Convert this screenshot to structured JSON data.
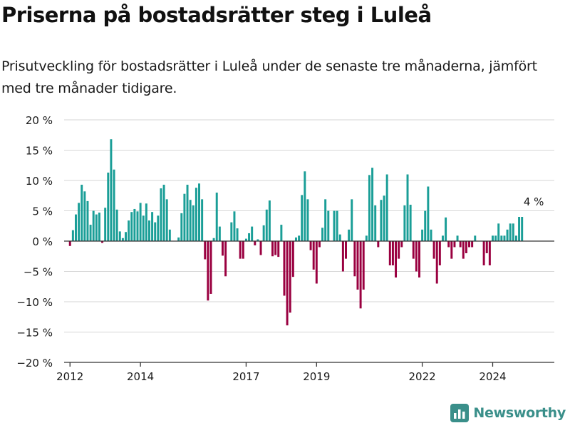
{
  "title": "Priserna på bostadsrätter steg i Luleå",
  "subtitle": "Prisutveckling för bostadsrätter i Luleå under de senaste tre månaderna, jämfört med tre månader tidigare.",
  "brand": {
    "name": "Newsworthy",
    "icon": "bar-chart-logo-icon",
    "color": "#3a8f8a"
  },
  "colors": {
    "positive": "#1a9e97",
    "negative": "#9a0040",
    "grid": "#d6d6d6",
    "axis": "#333333"
  },
  "chart_data": {
    "type": "bar",
    "xlabel": "",
    "ylabel": "",
    "ylim": [
      -20,
      20
    ],
    "yticks": [
      -20,
      -15,
      -10,
      -5,
      0,
      5,
      10,
      15,
      20
    ],
    "ytick_labels": [
      "−20 %",
      "−15 %",
      "−10 %",
      "−5 %",
      "0 %",
      "5 %",
      "10 %",
      "15 %",
      "20 %"
    ],
    "xrange": [
      "2011-11",
      "2025-10"
    ],
    "xticks": [
      {
        "date": "2012-01",
        "label": "2012"
      },
      {
        "date": "2014-01",
        "label": "2014"
      },
      {
        "date": "2017-01",
        "label": "2017"
      },
      {
        "date": "2019-01",
        "label": "2019"
      },
      {
        "date": "2022-01",
        "label": "2022"
      },
      {
        "date": "2024-01",
        "label": "2024"
      }
    ],
    "annotation": {
      "text": "4 %",
      "date": "2025-03",
      "value": 4
    },
    "series": [
      {
        "start": "2012-01",
        "values": [
          -0.8,
          1.8,
          4.4,
          6.3,
          9.3,
          8.2,
          6.6,
          2.7,
          5.0,
          4.4,
          4.7,
          -0.3,
          5.5,
          11.3,
          16.8,
          11.8,
          5.2,
          1.6,
          0.5,
          1.5,
          3.4,
          4.8,
          5.3,
          4.9,
          6.3,
          4.2,
          6.2,
          3.4,
          4.8,
          3.1,
          4.2,
          8.7,
          9.3,
          6.9,
          1.9,
          null,
          null,
          0.6,
          4.6,
          7.8,
          9.3,
          6.8,
          5.9,
          8.8,
          9.5,
          6.9,
          -3.0,
          -9.8,
          -8.7,
          0.5,
          8.0,
          2.4,
          -2.4,
          -5.8,
          null,
          3.1,
          4.9,
          2.1,
          -2.9,
          -2.9,
          0.4,
          1.3,
          2.4,
          -0.7,
          0.3,
          -2.3,
          2.6,
          5.2,
          6.7,
          -2.5,
          -2.3,
          -2.6,
          2.7,
          -9.0,
          -13.9,
          -11.8,
          -5.9,
          0.6,
          0.9,
          7.6,
          11.5,
          6.9,
          -1.5,
          -4.7,
          -7.0,
          -1.0,
          2.2,
          6.9,
          5.0,
          null,
          5.0,
          5.0,
          1.1,
          -5.0,
          -2.9,
          1.9,
          6.9,
          -5.8,
          -8.0,
          -11.1,
          -8.0,
          0.9,
          10.9,
          12.1,
          5.9,
          -1.0,
          6.8,
          7.5,
          11.0,
          -4.0,
          -4.0,
          -6.0,
          -2.9,
          -1.0,
          5.9,
          11.0,
          6.0,
          -2.9,
          -5.0,
          -6.0,
          1.9,
          5.0,
          9.0,
          1.9,
          -2.9,
          -7.0,
          -4.0,
          0.9,
          3.9,
          -1.0,
          -2.9,
          -1.0,
          0.9,
          -1.0,
          -2.9,
          -2.0,
          -1.0,
          -1.0,
          0.9,
          null,
          null,
          -4.0,
          -2.0,
          -4.0,
          0.9,
          0.9,
          2.9,
          0.9,
          0.9,
          1.9,
          2.9,
          2.9,
          0.9,
          4.0,
          4.0
        ]
      }
    ]
  }
}
